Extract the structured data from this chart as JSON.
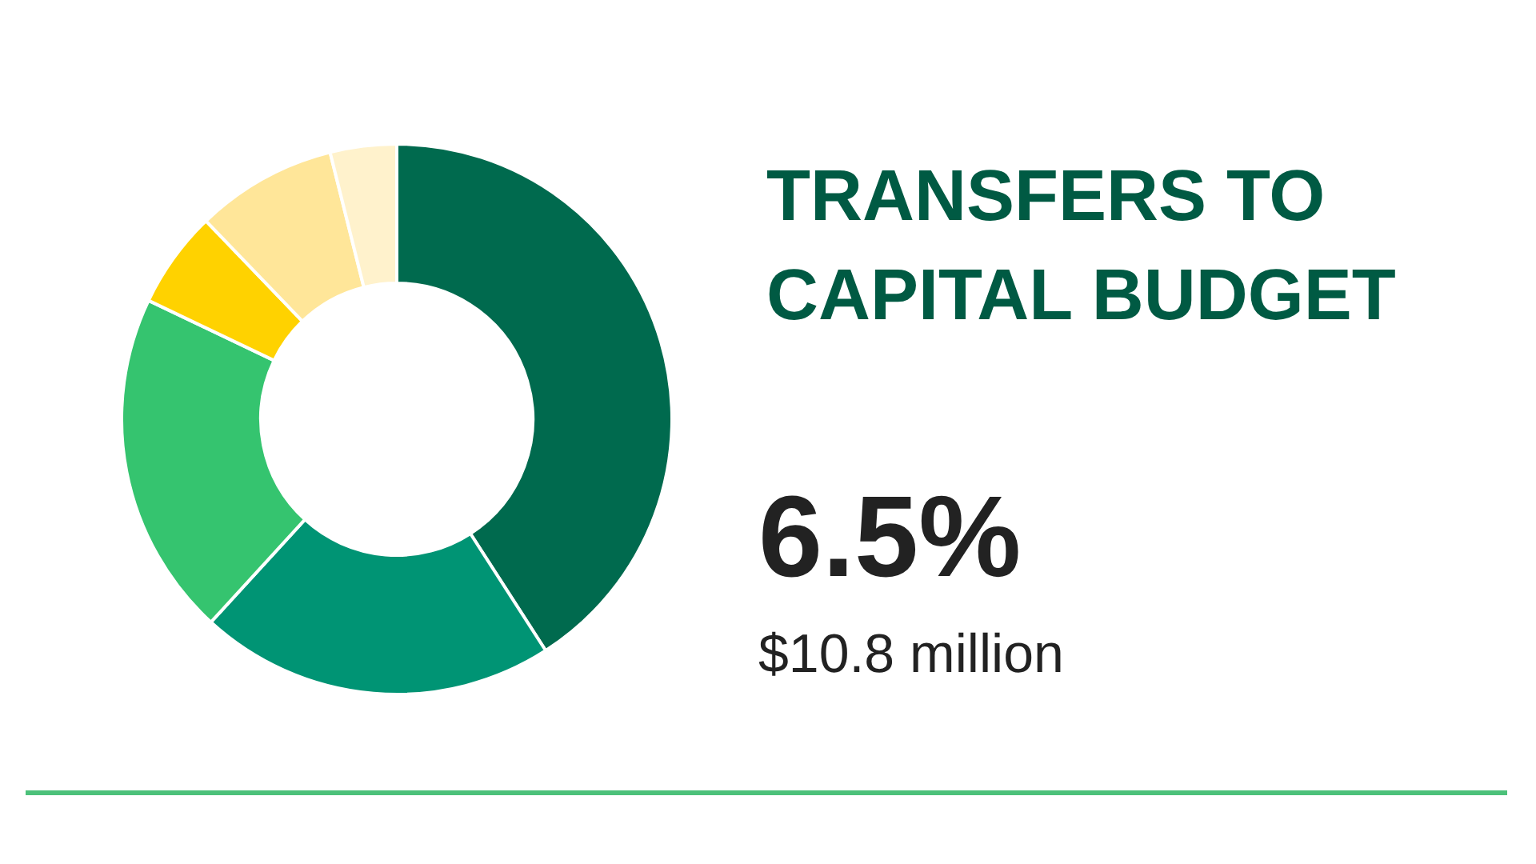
{
  "chart_data": {
    "type": "donut",
    "title": "TRANSFERS TO CAPITAL BUDGET",
    "categories": [
      null,
      null,
      null,
      null,
      null,
      null
    ],
    "values": [
      40.9,
      20.9,
      20.3,
      5.7,
      8.3,
      3.9
    ],
    "colors": [
      "#006a4e",
      "#009474",
      "#35c46f",
      "#ffd200",
      "#ffe699",
      "#fff2cc"
    ],
    "annotations": [
      "6.5%",
      "$10.8 million"
    ]
  }
}
